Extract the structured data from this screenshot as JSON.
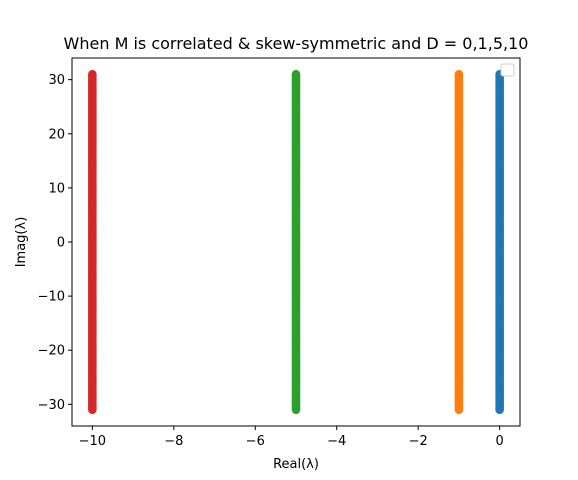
{
  "chart_data": {
    "type": "scatter",
    "title": "When M is correlated & skew-symmetric and D = 0,1,5,10",
    "xlabel": "Real(λ)",
    "ylabel": "Imag(λ)",
    "xlim": [
      -10.5,
      0.5
    ],
    "ylim": [
      -34,
      34
    ],
    "x_ticks": [
      -10,
      -8,
      -6,
      -4,
      -2,
      0
    ],
    "y_ticks": [
      -30,
      -20,
      -10,
      0,
      10,
      20,
      30
    ],
    "x_tick_labels": [
      "−10",
      "−8",
      "−6",
      "−4",
      "−2",
      "0"
    ],
    "y_tick_labels": [
      "−30",
      "−20",
      "−10",
      "0",
      "10",
      "20",
      "30"
    ],
    "grid": false,
    "legend": "upper right (empty)",
    "series": [
      {
        "color": "#1f77b4",
        "x": 0,
        "y_range": [
          -31,
          31
        ],
        "count": 200
      },
      {
        "color": "#ff7f0e",
        "x": -1,
        "y_range": [
          -31,
          31
        ],
        "count": 200
      },
      {
        "color": "#2ca02c",
        "x": -5,
        "y_range": [
          -31,
          31
        ],
        "count": 200
      },
      {
        "color": "#d62728",
        "x": -10,
        "y_range": [
          -31,
          31
        ],
        "count": 200
      }
    ]
  }
}
